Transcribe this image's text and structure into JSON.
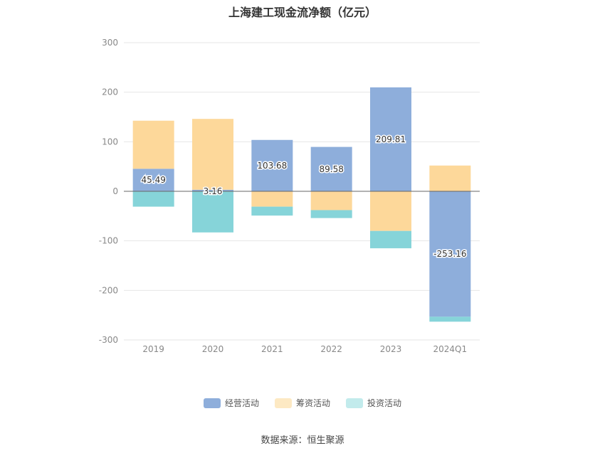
{
  "chart_data": {
    "type": "bar",
    "stacked": true,
    "title": "上海建工现金流净额（亿元）",
    "categories": [
      "2019",
      "2020",
      "2021",
      "2022",
      "2023",
      "2024Q1"
    ],
    "series": [
      {
        "name": "经营活动",
        "color": "#8eaedb",
        "values": [
          45.49,
          3.16,
          103.68,
          89.58,
          209.81,
          -253.16
        ]
      },
      {
        "name": "筹资活动",
        "color": "#fdd89a",
        "values": [
          97,
          143,
          -31,
          -38,
          -80,
          52
        ]
      },
      {
        "name": "投资活动",
        "color": "#86d4d9",
        "values": [
          -31,
          -83,
          -18,
          -16,
          -35,
          -10
        ]
      }
    ],
    "data_labels": [
      "45.49",
      "3.16",
      "103.68",
      "89.58",
      "209.81",
      "-253.16"
    ],
    "ylim": [
      -300,
      300
    ],
    "yticks": [
      300,
      200,
      100,
      0,
      -100,
      -200,
      -300
    ],
    "grid": true,
    "legend_position": "bottom",
    "source": "数据来源：恒生聚源"
  }
}
